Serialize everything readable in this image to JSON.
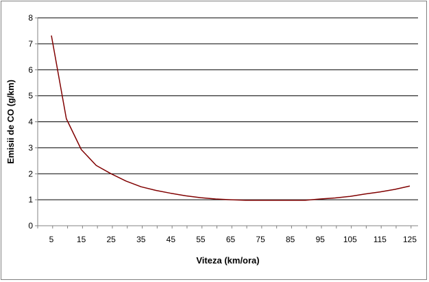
{
  "chart_data": {
    "type": "line",
    "title": "",
    "xlabel": "Viteza (km/ora)",
    "ylabel": "Emisii de CO (g/km)",
    "xlim": [
      5,
      125
    ],
    "ylim": [
      0,
      8
    ],
    "x_ticks": [
      5,
      15,
      25,
      35,
      45,
      55,
      65,
      75,
      85,
      95,
      105,
      115,
      125
    ],
    "y_ticks": [
      0,
      1,
      2,
      3,
      4,
      5,
      6,
      7,
      8
    ],
    "grid": "horizontal",
    "legend": "none",
    "line_color": "#800000",
    "series": [
      {
        "x": [
          5,
          10,
          15,
          20,
          25,
          30,
          35,
          40,
          45,
          50,
          55,
          60,
          65,
          70,
          75,
          80,
          85,
          90,
          95,
          100,
          105,
          110,
          115,
          120,
          125
        ],
        "values": [
          7.32,
          4.12,
          2.93,
          2.32,
          2.0,
          1.72,
          1.5,
          1.36,
          1.25,
          1.15,
          1.08,
          1.03,
          1.0,
          0.98,
          0.98,
          0.98,
          0.98,
          0.98,
          1.03,
          1.07,
          1.13,
          1.22,
          1.3,
          1.4,
          1.53
        ]
      }
    ]
  }
}
